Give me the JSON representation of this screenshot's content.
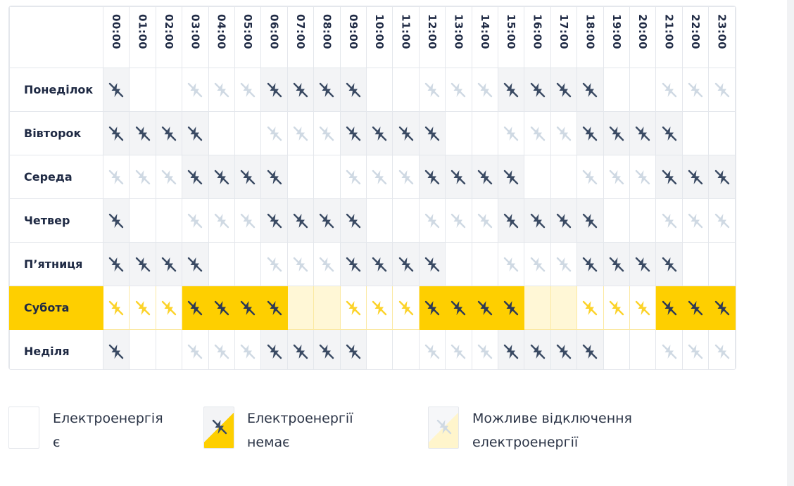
{
  "hours": [
    "00:00",
    "01:00",
    "02:00",
    "03:00",
    "04:00",
    "05:00",
    "06:00",
    "07:00",
    "08:00",
    "09:00",
    "10:00",
    "11:00",
    "12:00",
    "13:00",
    "14:00",
    "15:00",
    "16:00",
    "17:00",
    "18:00",
    "19:00",
    "20:00",
    "21:00",
    "22:00",
    "23:00"
  ],
  "days": [
    {
      "name": "Понеділок",
      "today": false,
      "cells": "DNNLLLDDDDNNLLLDDDDNNLLL"
    },
    {
      "name": "Вівторок",
      "today": false,
      "cells": "DDDDNNLLLDDDDNNLLLDDDDNN"
    },
    {
      "name": "Середа",
      "today": false,
      "cells": "LLLDDDDNNLLLDDDDNNLLLDDD"
    },
    {
      "name": "Четвер",
      "today": false,
      "cells": "DNNLLLDDDDNNLLLDDDDNNLLL"
    },
    {
      "name": "П’ятниця",
      "today": false,
      "cells": "DDDDNNLLLDDDDNNLLLDDDDNN"
    },
    {
      "name": "Субота",
      "today": true,
      "cells": "LLLDDDDNNLLLDDDDNNLLLDDD"
    },
    {
      "name": "Неділя",
      "today": false,
      "cells": "DNNLLLDDDDNNLLLDDDDNNLLL"
    }
  ],
  "icons": {
    "outage": "no-power-icon",
    "possible": "possible-outage-icon"
  },
  "colors": {
    "accent": "#fecf00",
    "dark_icon": "#3a4a63",
    "light_icon": "#cfd9e3",
    "off_bg": "#f3f4f6"
  },
  "legend": {
    "on": {
      "line1": "Електроенергія",
      "line2": "є"
    },
    "off": {
      "line1": "Електроенергії",
      "line2": "немає"
    },
    "maybe": {
      "line1": "Можливе відключення",
      "line2": "електроенергії"
    }
  }
}
